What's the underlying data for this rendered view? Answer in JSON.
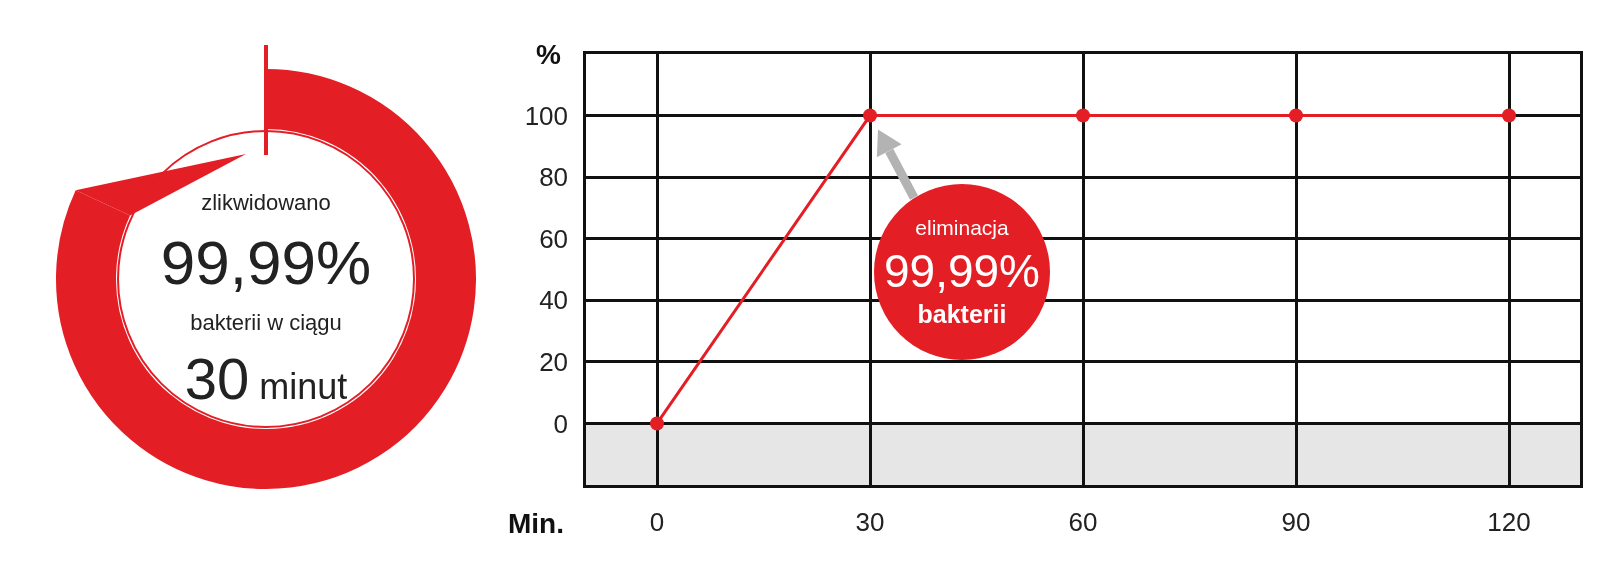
{
  "chart_data": [
    {
      "type": "other",
      "annotations": [
        "zlikwidowano",
        "99,99%",
        "bakterii w ciągu",
        "30 minut"
      ]
    },
    {
      "type": "line",
      "xlabel": "Min.",
      "ylabel": "%",
      "x": [
        0,
        30,
        60,
        90,
        120
      ],
      "series": [
        {
          "color": "#e31e25",
          "values": [
            0,
            100,
            100,
            100,
            100
          ]
        }
      ],
      "xlim": [
        -10,
        130
      ],
      "xticks": [
        0,
        30,
        60,
        90,
        120
      ],
      "ylim": [
        -20,
        120
      ],
      "yticks": [
        0,
        20,
        40,
        60,
        80,
        100
      ],
      "grid": true,
      "marker": "circle",
      "line_style": "solid",
      "bands": [
        {
          "axis": "y",
          "from": -20,
          "to": 0,
          "color": "#e6e6e6"
        }
      ],
      "annotations": [
        {
          "text": "eliminacja\n99,99%\nbakterii",
          "x": 30,
          "y": 100
        }
      ]
    }
  ]
}
